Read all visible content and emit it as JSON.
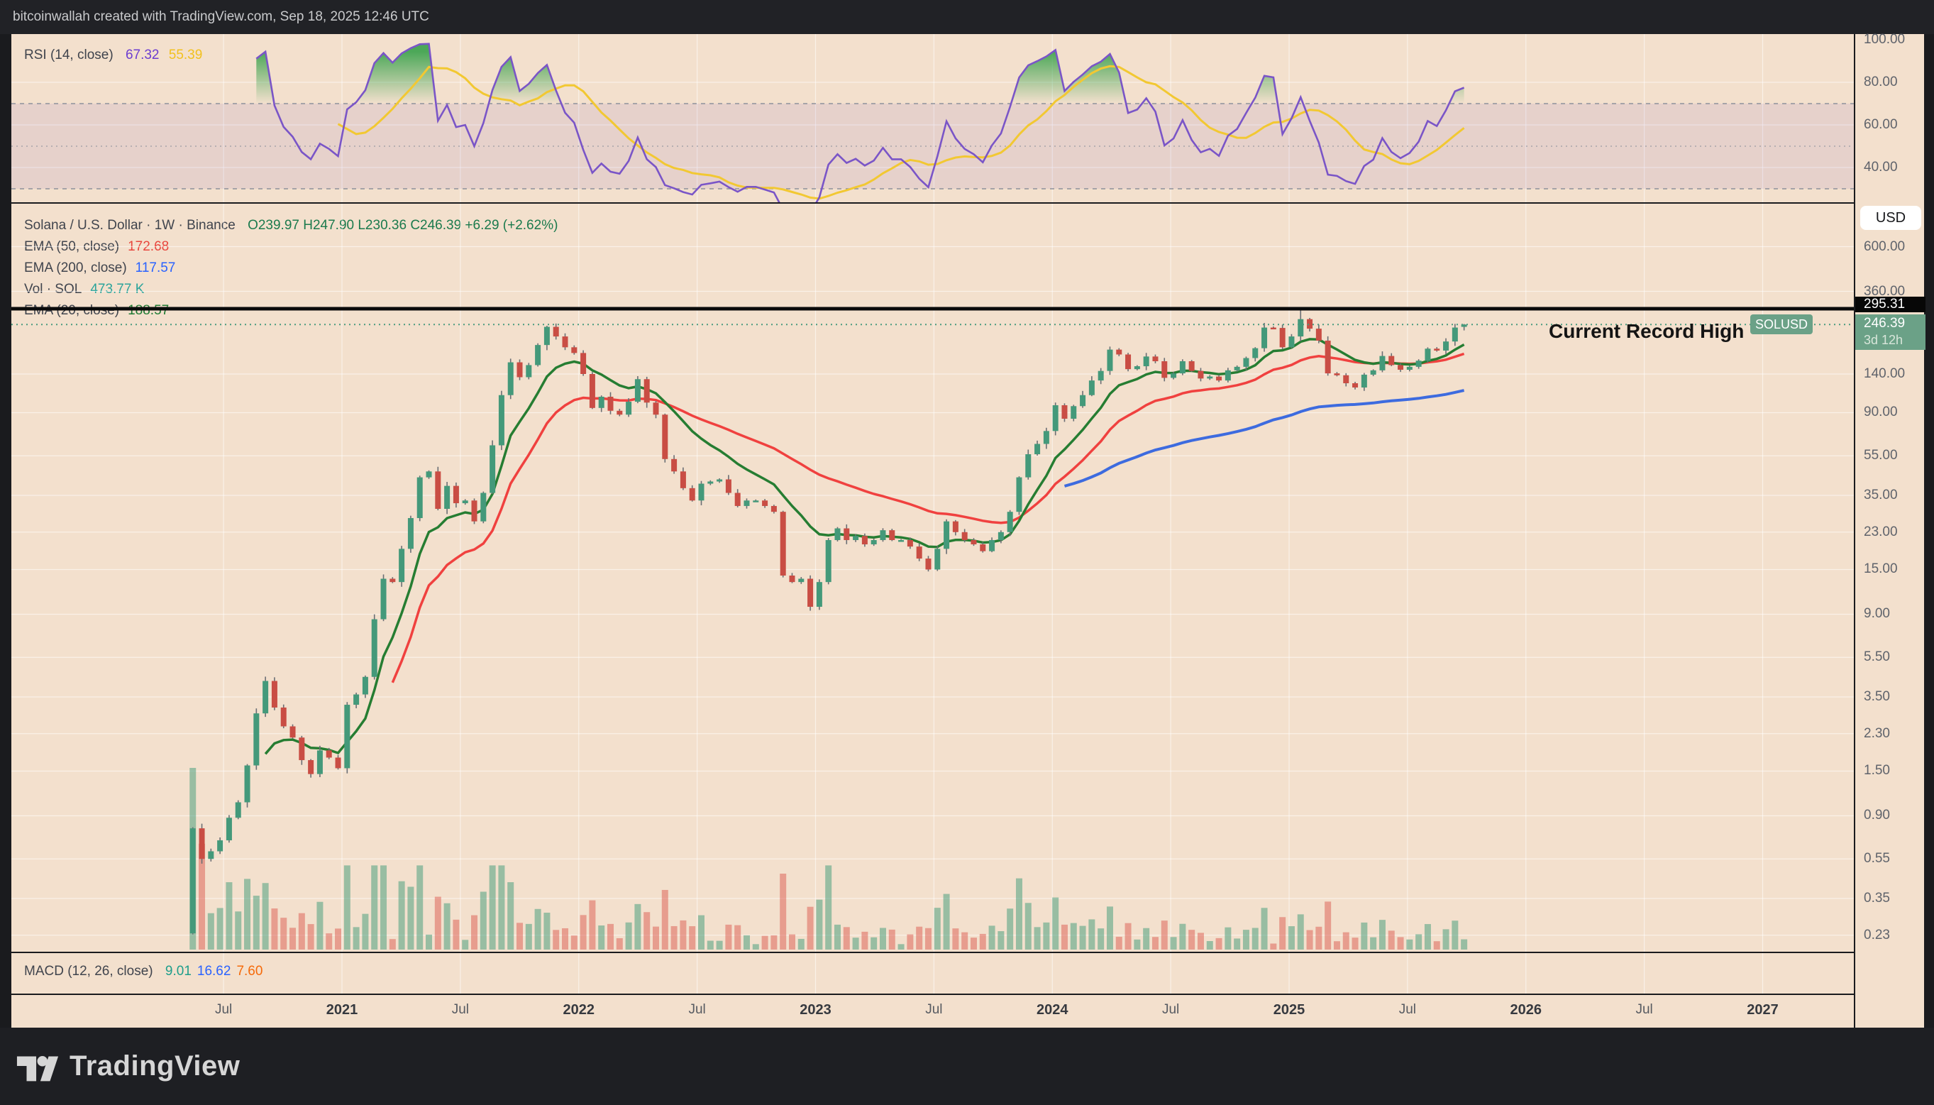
{
  "topbar": {
    "text": "bitcoinwallah created with TradingView.com, Sep 18, 2025 12:46 UTC"
  },
  "rsi_panel": {
    "legend": {
      "title": "RSI (14, close)",
      "value_rsi": "67.32",
      "value_ma": "55.39"
    },
    "levels": {
      "overbought": 70,
      "middle": 50,
      "oversold": 30
    }
  },
  "main_panel": {
    "legend": {
      "title": "Solana / U.S. Dollar · 1W · Binance",
      "ohlc": "O239.97  H247.90  L230.36  C246.39  +6.29 (+2.62%)",
      "rows": [
        {
          "label": "EMA (50, close)",
          "value": "172.68",
          "color": "#e8453c"
        },
        {
          "label": "EMA (200, close)",
          "value": "117.57",
          "color": "#2962ff"
        },
        {
          "label": "Vol · SOL",
          "value": "473.77 K",
          "color": "#2aa39a"
        },
        {
          "label": "EMA (20, close)",
          "value": "188.57",
          "color": "#1f7a33"
        }
      ]
    },
    "annotation": "Current Record High",
    "badges": {
      "currency": "USD",
      "record": "295.31",
      "price": "246.39",
      "countdown": "3d 12h",
      "symbol": "SOLUSD"
    }
  },
  "macd_panel": {
    "legend": {
      "title": "MACD (12, 26, close)",
      "values": [
        {
          "text": "9.01",
          "color": "#1e9e8b"
        },
        {
          "text": "16.62",
          "color": "#2962ff"
        },
        {
          "text": "7.60",
          "color": "#f56a0a"
        }
      ]
    }
  },
  "footer": {
    "brand": "TradingView"
  },
  "chart_data": {
    "type": "candlestick",
    "title": "Solana / U.S. Dollar",
    "symbol": "SOLUSD",
    "timeframe": "1W",
    "exchange": "Binance",
    "scale": "log",
    "legend_position": "top-left",
    "grid": true,
    "x_start_year": 2020.37,
    "x_step_years": 0.03835,
    "first_open": 0.235,
    "closes": [
      0.78,
      0.55,
      0.6,
      0.68,
      0.88,
      1.05,
      1.6,
      2.9,
      4.2,
      3.1,
      2.5,
      2.2,
      1.7,
      1.45,
      1.9,
      1.75,
      1.55,
      3.2,
      3.6,
      4.4,
      8.5,
      13.5,
      13.0,
      19.0,
      27.0,
      43.0,
      46.0,
      30.0,
      39.0,
      32.0,
      33.0,
      26.0,
      36.0,
      62.0,
      110,
      160,
      135,
      155,
      195,
      240,
      215,
      190,
      178,
      140,
      95,
      108,
      92,
      88,
      102,
      132,
      101,
      88,
      53,
      46,
      38,
      33,
      40,
      41,
      42,
      36,
      31,
      33,
      33,
      31,
      29,
      14,
      13,
      13.5,
      9.8,
      13,
      21,
      24,
      21,
      22,
      20,
      21,
      23.5,
      21,
      21,
      19.5,
      17,
      15,
      19,
      26,
      23,
      21,
      20,
      18.5,
      21,
      23,
      29,
      43,
      56,
      63,
      73,
      98,
      84,
      97,
      110,
      130,
      145,
      185,
      175,
      148,
      153,
      171,
      162,
      134,
      141,
      162,
      145,
      133,
      136,
      130,
      146,
      152,
      168,
      188,
      238,
      237,
      190,
      215,
      262,
      235,
      205,
      141,
      138,
      126,
      120,
      139,
      146,
      172,
      155,
      147,
      152,
      163,
      187,
      183,
      203,
      238,
      246.39
    ],
    "last_candle": {
      "open": 239.97,
      "high": 247.9,
      "low": 230.36,
      "close": 246.39,
      "change": 6.29,
      "change_pct": 2.62
    },
    "record_high": {
      "price": 295.31,
      "index": 122
    },
    "current_price": 246.39,
    "indicators": {
      "ema20": 188.57,
      "ema50": 172.68,
      "ema200": 117.57,
      "rsi14": 67.32,
      "rsi_ma": 55.39,
      "macd_hist": 9.01,
      "macd": 16.62,
      "macd_signal": 7.6,
      "volume_sol": "473.77 K"
    },
    "y_ticks": [
      600,
      360,
      140,
      90,
      55,
      35,
      23,
      15,
      9,
      5.5,
      3.5,
      2.3,
      1.5,
      0.9,
      0.55,
      0.35,
      0.23
    ],
    "rsi_ticks": [
      100,
      80,
      60,
      40
    ],
    "x_ticks": [
      {
        "t": 2020.5,
        "label": "Jul"
      },
      {
        "t": 2021.0,
        "label": "2021",
        "bold": true
      },
      {
        "t": 2021.5,
        "label": "Jul"
      },
      {
        "t": 2022.0,
        "label": "2022",
        "bold": true
      },
      {
        "t": 2022.5,
        "label": "Jul"
      },
      {
        "t": 2023.0,
        "label": "2023",
        "bold": true
      },
      {
        "t": 2023.5,
        "label": "Jul"
      },
      {
        "t": 2024.0,
        "label": "2024",
        "bold": true
      },
      {
        "t": 2024.5,
        "label": "Jul"
      },
      {
        "t": 2025.0,
        "label": "2025",
        "bold": true
      },
      {
        "t": 2025.5,
        "label": "Jul"
      },
      {
        "t": 2026.0,
        "label": "2026",
        "bold": true
      },
      {
        "t": 2026.5,
        "label": "Jul"
      },
      {
        "t": 2027.0,
        "label": "2027",
        "bold": true
      }
    ],
    "colors": {
      "background": "#f3e0cd",
      "candle_up": "#44997a",
      "candle_down": "#c94d44",
      "wick": "#6a6e74",
      "vol_up": "rgba(77,160,128,0.55)",
      "vol_down": "rgba(219,90,80,0.5)",
      "ema20": "#267d32",
      "ema50": "#f0413f",
      "ema200": "#3d6bdf",
      "rsi_line": "#7a55c7",
      "rsi_ma_line": "#f2c832",
      "rsi_band": "rgba(126,87,194,0.11)",
      "rsi_overbought_fill": "#2f9e44",
      "record_line": "#0a0a0a",
      "price_line": "#4a9b7f",
      "badge_green": "#6ba187",
      "grid": "rgba(255,255,255,0.55)"
    }
  }
}
